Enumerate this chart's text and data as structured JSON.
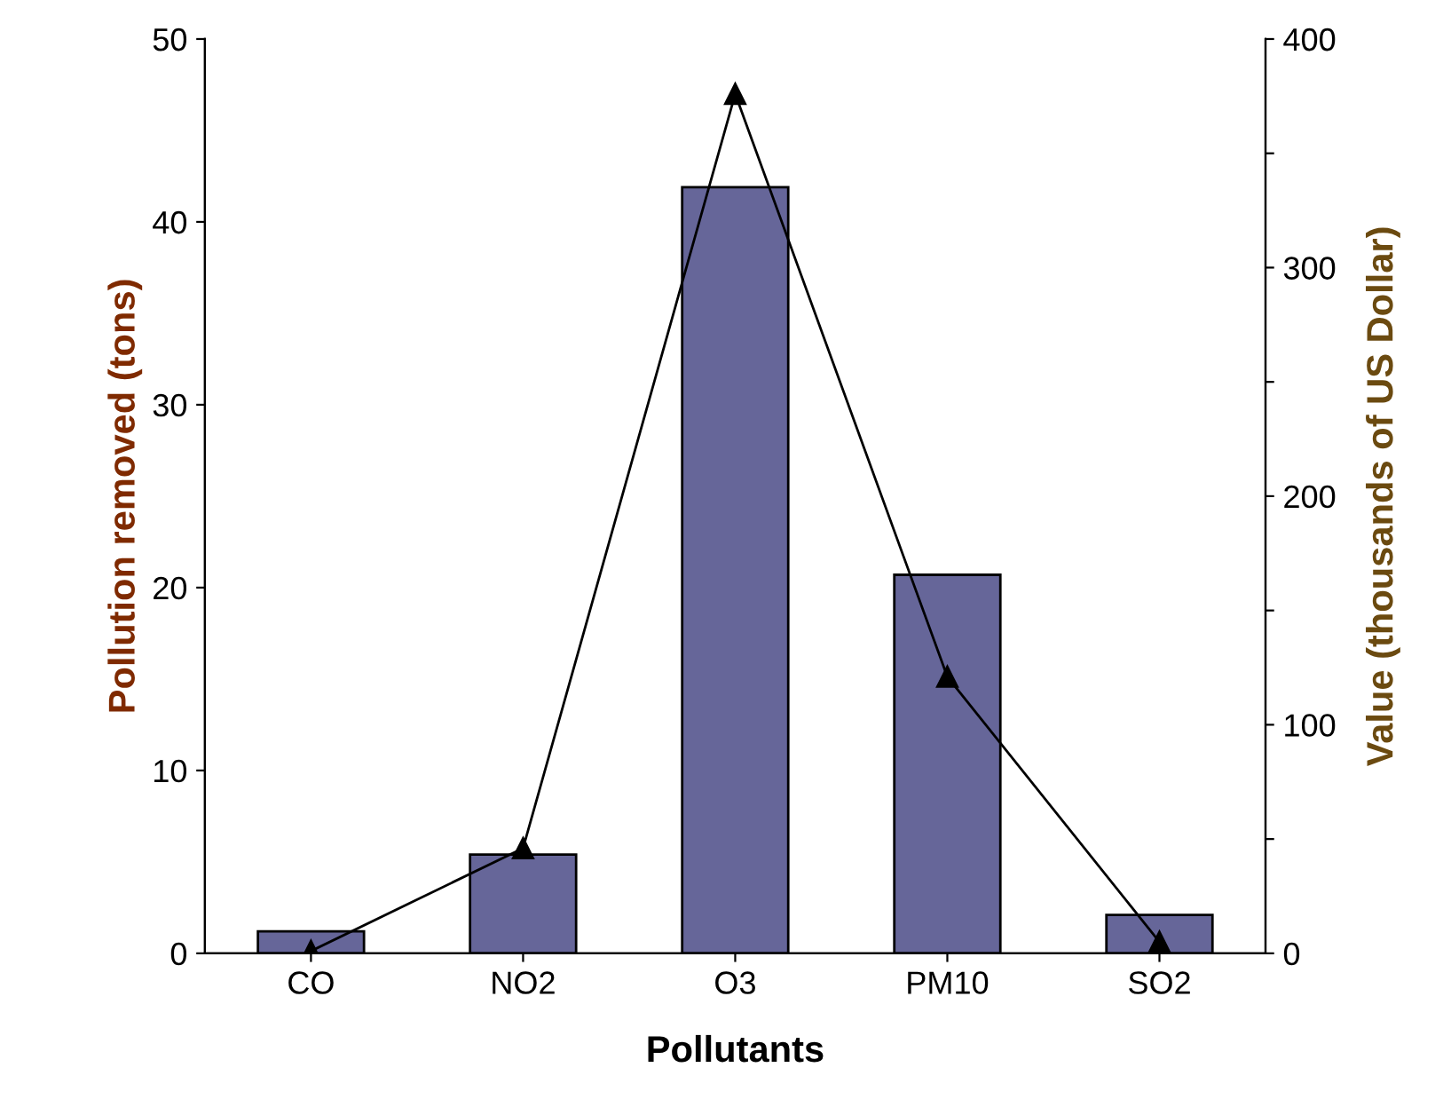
{
  "chart_data": {
    "type": "bar",
    "xlabel": "Pollutants",
    "ylabel": "Pollution removed (tons)",
    "y2label": "Value (thousands of US Dollar)",
    "categories": [
      "CO",
      "NO2",
      "O3",
      "PM10",
      "SO2"
    ],
    "series": [
      {
        "color": "#666699",
        "values": [
          1.2,
          5.4,
          41.9,
          20.7,
          2.1
        ]
      },
      {
        "type": "line",
        "axis": "y2",
        "color": "#000000",
        "marker": "triangle",
        "line_style": "solid",
        "values": [
          1,
          46,
          376,
          121,
          5
        ]
      }
    ],
    "ylim": [
      0,
      50
    ],
    "yticks": [
      0,
      10,
      20,
      30,
      40,
      50
    ],
    "y2lim": [
      0,
      400
    ],
    "y2ticks": [
      0,
      {
        "value": 50,
        "label": null
      },
      100,
      {
        "value": 150,
        "label": null
      },
      200,
      {
        "value": 250,
        "label": null
      },
      300,
      {
        "value": 350,
        "label": null
      },
      400
    ],
    "grid": false,
    "legend": false
  }
}
